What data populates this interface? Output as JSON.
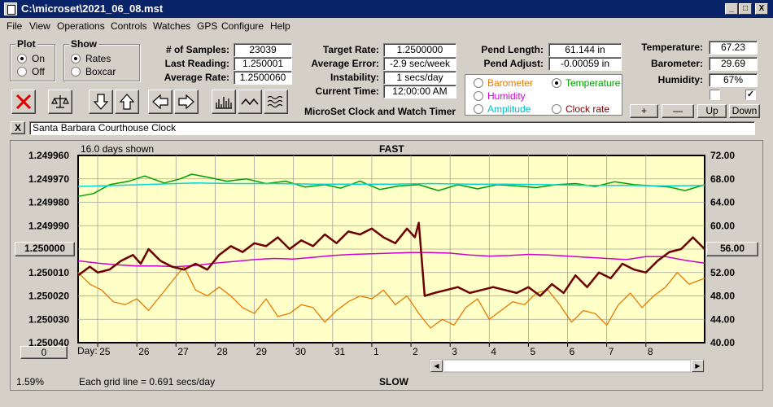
{
  "window": {
    "title": "C:\\microset\\2021_06_08.mst",
    "minimize": "_",
    "maximize": "□",
    "close": "X"
  },
  "menu": [
    "File",
    "View",
    "Operations",
    "Controls",
    "Watches",
    "GPS",
    "Configure",
    "Help"
  ],
  "plot_group": {
    "title": "Plot",
    "options": [
      "On",
      "Off"
    ],
    "selected": "On"
  },
  "show_group": {
    "title": "Show",
    "options": [
      "Rates",
      "Boxcar"
    ],
    "selected": "Rates"
  },
  "stats": {
    "samples_label": "# of Samples:",
    "samples_value": "23039",
    "last_label": "Last Reading:",
    "last_value": "1.250001",
    "avg_label": "Average Rate:",
    "avg_value": "1.2500060"
  },
  "rates": {
    "target_label": "Target Rate:",
    "target_value": "1.2500000",
    "error_label": "Average Error:",
    "error_value": "-2.9 sec/week",
    "instab_label": "Instability:",
    "instab_value": "1 secs/day",
    "time_label": "Current Time:",
    "time_value": "12:00:00 AM"
  },
  "app_title": "MicroSet Clock and Watch Timer",
  "pend": {
    "length_label": "Pend Length:",
    "length_value": "61.144 in",
    "adjust_label": "Pend Adjust:",
    "adjust_value": "-0.00059 in"
  },
  "sensor_select": {
    "options": [
      {
        "label": "Barometer",
        "color": "#e87a00",
        "selected": false
      },
      {
        "label": "Temperature",
        "color": "#00a000",
        "selected": true
      },
      {
        "label": "Humidity",
        "color": "#d000d0",
        "selected": false
      },
      {
        "label": "Clock rate",
        "color": "#800000",
        "selected": false
      },
      {
        "label": "Amplitude",
        "color": "#00c0c0",
        "selected": false
      }
    ]
  },
  "env": {
    "temp_label": "Temperature:",
    "temp_value": "67.23",
    "baro_label": "Barometer:",
    "baro_value": "29.69",
    "hum_label": "Humidity:",
    "hum_value": "67%",
    "chk1": "",
    "chk2": "✓",
    "btn_plus": "+",
    "btn_minus": "—",
    "btn_up": "Up",
    "btn_down": "Down"
  },
  "toolbar": [
    "clear-icon",
    "balance-icon",
    "arrow-down-icon",
    "arrow-up-icon",
    "arrow-left-icon",
    "arrow-right-icon",
    "bars-icon",
    "wave-icon",
    "multiwave-icon"
  ],
  "description": {
    "close": "X",
    "value": "Santa Barbara Courthouse Clock"
  },
  "chart_labels": {
    "days_shown": "16.0 days shown",
    "fast": "FAST",
    "slow": "SLOW",
    "center_left": "1.250000",
    "center_right": "56.00",
    "bottom_btn": "0",
    "day_label": "Day:",
    "grid_note": "Each grid line = 0.691 secs/day",
    "percent": "1.59%"
  },
  "chart_data": {
    "type": "line",
    "y_left_ticks": [
      "1.249960",
      "1.249970",
      "1.249980",
      "1.249990",
      "1.250000",
      "1.250010",
      "1.250020",
      "1.250030",
      "1.250040"
    ],
    "y_right_ticks": [
      "72.00",
      "68.00",
      "64.00",
      "60.00",
      "56.00",
      "52.00",
      "48.00",
      "44.00",
      "40.00"
    ],
    "y_right_range": [
      40,
      72
    ],
    "x_days": [
      "25",
      "26",
      "27",
      "28",
      "29",
      "30",
      "31",
      "1",
      "2",
      "3",
      "4",
      "5",
      "6",
      "7",
      "8"
    ],
    "x_range": [
      24.5,
      40.5
    ],
    "grid": true,
    "background": "#ffffc8",
    "series": [
      {
        "color": "#00a000",
        "width": 1.5,
        "x": [
          24.5,
          24.9,
          25.3,
          25.8,
          26.2,
          26.7,
          27.1,
          27.4,
          27.8,
          28.3,
          28.8,
          29.3,
          29.8,
          30.3,
          30.8,
          31.2,
          31.7,
          32.2,
          32.7,
          33.2,
          33.7,
          34.2,
          34.7,
          35.2,
          35.7,
          36.2,
          36.7,
          37.2,
          37.7,
          38.2,
          38.7,
          39.2,
          39.6,
          40.0,
          40.5
        ],
        "y": [
          65.0,
          65.5,
          67.0,
          67.6,
          68.5,
          67.3,
          68.0,
          68.8,
          68.3,
          67.6,
          68.0,
          67.2,
          67.6,
          66.6,
          67.0,
          66.4,
          67.6,
          66.2,
          66.8,
          67.0,
          66.0,
          67.0,
          66.3,
          67.0,
          66.8,
          66.5,
          67.0,
          67.2,
          66.7,
          67.5,
          67.0,
          66.8,
          66.6,
          66.0,
          67.0
        ]
      },
      {
        "color": "#00d8d8",
        "width": 1.5,
        "x": [
          24.5,
          25.5,
          26.5,
          27.5,
          28.5,
          29.5,
          30.5,
          31.5,
          32.5,
          33.5,
          34.5,
          35.5,
          36.5,
          37.5,
          38.5,
          39.5,
          40.5
        ],
        "y": [
          66.7,
          66.9,
          67.1,
          67.3,
          67.2,
          67.2,
          67.1,
          67.1,
          67.1,
          67.2,
          67.1,
          67.1,
          67.0,
          66.9,
          66.9,
          66.8,
          66.9
        ]
      },
      {
        "color": "#d000d0",
        "width": 1.5,
        "x": [
          24.5,
          25.0,
          25.5,
          26.0,
          26.5,
          27.0,
          27.5,
          28.0,
          28.5,
          29.0,
          29.5,
          30.0,
          30.5,
          31.0,
          31.5,
          32.0,
          32.5,
          33.0,
          33.5,
          34.0,
          34.5,
          35.0,
          35.5,
          36.0,
          36.5,
          37.0,
          37.5,
          38.0,
          38.5,
          39.0,
          39.5,
          40.0,
          40.5
        ],
        "y": [
          54.0,
          53.6,
          53.3,
          53.1,
          53.1,
          53.0,
          53.2,
          53.6,
          53.9,
          54.2,
          54.4,
          54.3,
          54.6,
          54.9,
          55.1,
          55.2,
          55.3,
          55.4,
          55.4,
          55.3,
          55.0,
          54.8,
          54.9,
          55.1,
          55.0,
          54.8,
          54.6,
          54.4,
          54.2,
          54.7,
          54.7,
          54.1,
          53.6
        ]
      },
      {
        "color": "#e87a00",
        "width": 1.3,
        "x": [
          24.5,
          24.8,
          25.1,
          25.4,
          25.7,
          26.0,
          26.3,
          26.6,
          26.9,
          27.2,
          27.5,
          27.8,
          28.1,
          28.4,
          28.7,
          29.0,
          29.3,
          29.6,
          29.9,
          30.2,
          30.5,
          30.8,
          31.1,
          31.4,
          31.7,
          32.0,
          32.3,
          32.6,
          32.9,
          33.2,
          33.5,
          33.8,
          34.1,
          34.4,
          34.7,
          35.0,
          35.3,
          35.6,
          35.9,
          36.2,
          36.5,
          36.8,
          37.1,
          37.4,
          37.7,
          38.0,
          38.3,
          38.6,
          38.9,
          39.2,
          39.5,
          39.8,
          40.1,
          40.5
        ],
        "y": [
          52.0,
          50.0,
          49.0,
          47.0,
          46.5,
          47.5,
          45.5,
          48.0,
          50.5,
          53.0,
          49.0,
          48.0,
          49.5,
          48.0,
          46.0,
          45.0,
          47.5,
          44.5,
          45.0,
          46.5,
          46.0,
          43.5,
          45.5,
          47.0,
          48.0,
          47.5,
          49.0,
          46.5,
          48.0,
          45.0,
          42.5,
          44.0,
          43.0,
          46.0,
          47.5,
          44.0,
          45.5,
          47.0,
          46.5,
          48.5,
          49.0,
          46.5,
          43.5,
          45.5,
          45.0,
          43.0,
          46.5,
          48.5,
          46.0,
          48.0,
          49.5,
          52.0,
          50.0,
          51.0
        ]
      },
      {
        "color": "#6e0000",
        "width": 2.5,
        "x": [
          24.5,
          24.8,
          25.0,
          25.3,
          25.6,
          25.9,
          26.1,
          26.3,
          26.6,
          26.9,
          27.2,
          27.5,
          27.8,
          28.1,
          28.4,
          28.7,
          29.0,
          29.3,
          29.6,
          29.9,
          30.2,
          30.5,
          30.8,
          31.1,
          31.4,
          31.7,
          32.0,
          32.3,
          32.6,
          32.9,
          33.1,
          33.2,
          33.35,
          33.6,
          33.9,
          34.2,
          34.5,
          34.8,
          35.1,
          35.4,
          35.7,
          36.0,
          36.3,
          36.6,
          36.9,
          37.2,
          37.5,
          37.8,
          38.1,
          38.4,
          38.7,
          39.0,
          39.3,
          39.6,
          39.9,
          40.2,
          40.5
        ],
        "y": [
          51.5,
          53.0,
          52.0,
          52.5,
          54.0,
          55.0,
          53.5,
          56.0,
          54.0,
          53.0,
          52.5,
          53.5,
          52.5,
          55.0,
          56.5,
          55.5,
          57.0,
          56.5,
          58.0,
          56.0,
          57.5,
          56.5,
          58.5,
          57.0,
          59.0,
          58.5,
          59.5,
          58.0,
          57.0,
          59.5,
          58.0,
          60.5,
          48.0,
          48.5,
          49.0,
          49.5,
          48.5,
          49.0,
          49.5,
          49.0,
          48.5,
          49.5,
          48.0,
          50.0,
          48.5,
          51.5,
          49.5,
          52.0,
          51.0,
          53.5,
          52.5,
          52.0,
          54.0,
          55.5,
          56.0,
          58.0,
          56.0
        ]
      }
    ]
  }
}
